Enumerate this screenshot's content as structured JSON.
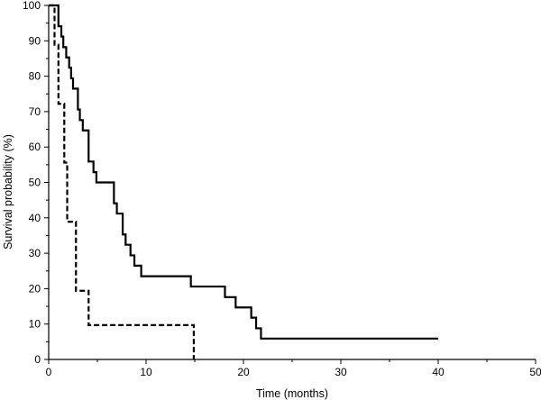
{
  "chart_data": {
    "type": "line",
    "title": "",
    "xlabel": "Time (months)",
    "ylabel": "Survival probability (%)",
    "xlim": [
      0,
      50
    ],
    "ylim": [
      0,
      100
    ],
    "x_ticks": [
      0,
      10,
      20,
      30,
      40,
      50
    ],
    "y_ticks": [
      0,
      10,
      20,
      30,
      40,
      50,
      60,
      70,
      80,
      90,
      100
    ],
    "step": true,
    "grid": false,
    "series": [
      {
        "style": "solid",
        "color": "#000000",
        "points": [
          [
            0,
            100
          ],
          [
            1.0,
            100
          ],
          [
            1.0,
            94.1
          ],
          [
            1.3,
            94.1
          ],
          [
            1.3,
            91.2
          ],
          [
            1.5,
            91.2
          ],
          [
            1.5,
            88.2
          ],
          [
            1.8,
            88.2
          ],
          [
            1.8,
            85.3
          ],
          [
            2.1,
            85.3
          ],
          [
            2.1,
            82.4
          ],
          [
            2.3,
            82.4
          ],
          [
            2.3,
            79.4
          ],
          [
            2.5,
            79.4
          ],
          [
            2.5,
            76.5
          ],
          [
            3.0,
            76.5
          ],
          [
            3.0,
            70.6
          ],
          [
            3.2,
            70.6
          ],
          [
            3.2,
            67.6
          ],
          [
            3.5,
            67.6
          ],
          [
            3.5,
            64.7
          ],
          [
            4.1,
            64.7
          ],
          [
            4.1,
            55.9
          ],
          [
            4.6,
            55.9
          ],
          [
            4.6,
            52.9
          ],
          [
            4.9,
            52.9
          ],
          [
            4.9,
            50.0
          ],
          [
            6.7,
            50.0
          ],
          [
            6.7,
            44.1
          ],
          [
            7.0,
            44.1
          ],
          [
            7.0,
            41.2
          ],
          [
            7.6,
            41.2
          ],
          [
            7.6,
            35.3
          ],
          [
            7.9,
            35.3
          ],
          [
            7.9,
            32.4
          ],
          [
            8.4,
            32.4
          ],
          [
            8.4,
            29.4
          ],
          [
            8.8,
            29.4
          ],
          [
            8.8,
            26.5
          ],
          [
            9.5,
            26.5
          ],
          [
            9.5,
            23.5
          ],
          [
            14.6,
            23.5
          ],
          [
            14.6,
            20.6
          ],
          [
            18.1,
            20.6
          ],
          [
            18.1,
            17.6
          ],
          [
            19.2,
            17.6
          ],
          [
            19.2,
            14.7
          ],
          [
            20.8,
            14.7
          ],
          [
            20.8,
            11.8
          ],
          [
            21.3,
            11.8
          ],
          [
            21.3,
            8.8
          ],
          [
            21.8,
            8.8
          ],
          [
            21.8,
            5.9
          ],
          [
            40.0,
            5.9
          ]
        ]
      },
      {
        "style": "dashed",
        "color": "#000000",
        "points": [
          [
            0,
            100
          ],
          [
            0.6,
            100
          ],
          [
            0.6,
            88.9
          ],
          [
            1.0,
            88.9
          ],
          [
            1.0,
            72.2
          ],
          [
            1.6,
            72.2
          ],
          [
            1.6,
            55.6
          ],
          [
            1.9,
            55.6
          ],
          [
            1.9,
            38.9
          ],
          [
            2.8,
            38.9
          ],
          [
            2.8,
            19.4
          ],
          [
            4.1,
            19.4
          ],
          [
            4.1,
            9.7
          ],
          [
            14.9,
            9.7
          ],
          [
            14.9,
            0
          ]
        ]
      }
    ]
  }
}
